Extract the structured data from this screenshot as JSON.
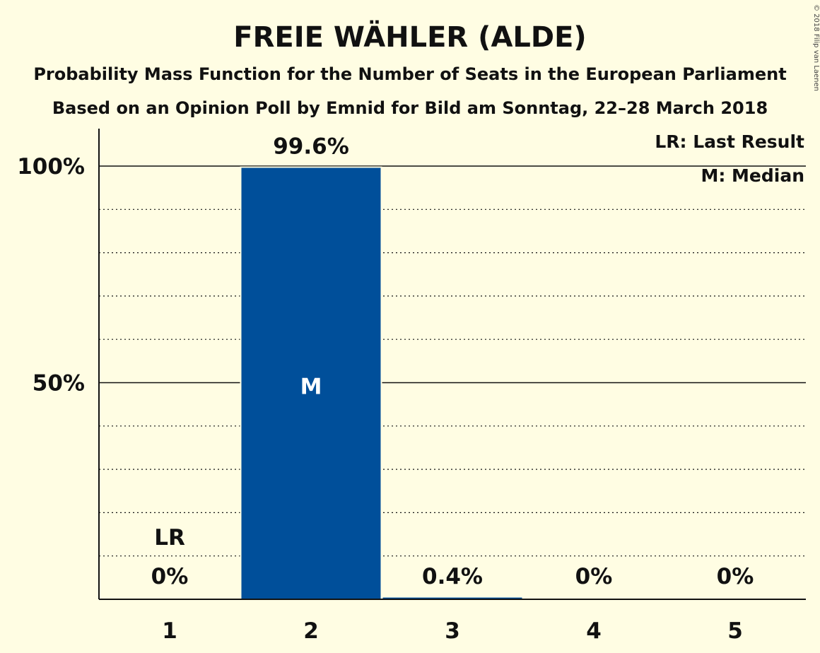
{
  "chart_data": {
    "type": "bar",
    "title": "FREIE WÄHLER (ALDE)",
    "subtitle_1": "Probability Mass Function for the Number of Seats in the European Parliament",
    "subtitle_2": "Based on an Opinion Poll by Emnid for Bild am Sonntag, 22–28 March 2018",
    "categories": [
      "1",
      "2",
      "3",
      "4",
      "5"
    ],
    "values": [
      0,
      99.6,
      0.4,
      0,
      0
    ],
    "value_labels": [
      "0%",
      "99.6%",
      "0.4%",
      "0%",
      "0%"
    ],
    "y_ticks": [
      {
        "value": 50,
        "label": "50%"
      },
      {
        "value": 100,
        "label": "100%"
      }
    ],
    "ylim": [
      0,
      100
    ],
    "minor_grid_step": 10,
    "last_result": {
      "seat": "1",
      "label": "LR"
    },
    "median": {
      "seat": "2",
      "label": "M"
    },
    "legend": [
      "LR: Last Result",
      "M: Median"
    ],
    "legend_position": "top-right",
    "bar_color": "#004f9a",
    "copyright": "© 2018 Filip van Laenen"
  }
}
